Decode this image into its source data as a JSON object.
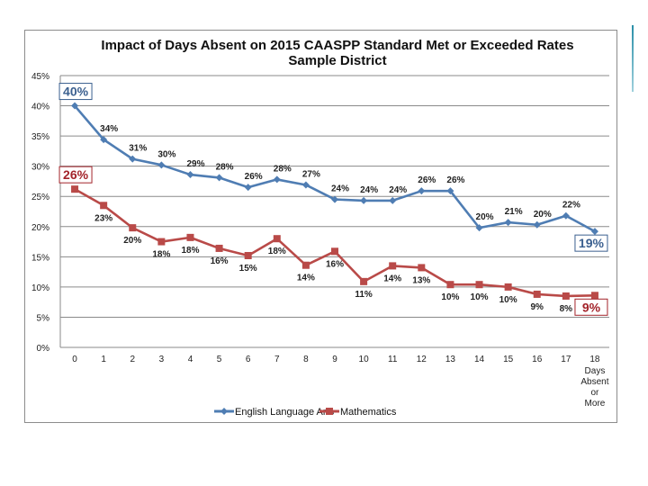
{
  "chart_data": {
    "type": "line",
    "title": "Impact of Days Absent on 2015 CAASPP Standard Met or Exceeded Rates",
    "subtitle": "Sample District",
    "xlabel": "Days Absent or More",
    "ylabel": "",
    "categories": [
      "0",
      "1",
      "2",
      "3",
      "4",
      "5",
      "6",
      "7",
      "8",
      "9",
      "10",
      "11",
      "12",
      "13",
      "14",
      "15",
      "16",
      "17",
      "18"
    ],
    "last_category_note": [
      "Days",
      "Absent",
      "or",
      "More"
    ],
    "y_ticks": [
      "0%",
      "5%",
      "10%",
      "15%",
      "20%",
      "25%",
      "30%",
      "35%",
      "40%",
      "45%"
    ],
    "ylim": [
      0,
      45
    ],
    "grid": true,
    "legend_position": "bottom",
    "series": [
      {
        "name": "English Language Arts",
        "color": "#4f7db3",
        "marker": "diamond",
        "values": [
          40,
          34.4,
          31.2,
          30.2,
          28.6,
          28.1,
          26.5,
          27.8,
          26.9,
          24.5,
          24.3,
          24.3,
          25.9,
          25.9,
          19.8,
          20.7,
          20.3,
          21.8,
          19.2
        ],
        "labels": [
          "40%",
          "34%",
          "31%",
          "30%",
          "29%",
          "28%",
          "26%",
          "28%",
          "27%",
          "24%",
          "24%",
          "24%",
          "26%",
          "26%",
          "20%",
          "21%",
          "20%",
          "22%",
          "19%"
        ]
      },
      {
        "name": "Mathematics",
        "color": "#b94a48",
        "marker": "square",
        "values": [
          26.2,
          23.5,
          19.8,
          17.5,
          18.2,
          16.4,
          15.2,
          18.0,
          13.6,
          15.9,
          10.9,
          13.5,
          13.2,
          10.4,
          10.4,
          10.0,
          8.8,
          8.5,
          8.6
        ],
        "labels": [
          "26%",
          "23%",
          "20%",
          "18%",
          "18%",
          "16%",
          "15%",
          "18%",
          "14%",
          "16%",
          "11%",
          "14%",
          "13%",
          "10%",
          "10%",
          "10%",
          "9%",
          "8%",
          "9%"
        ]
      }
    ],
    "callouts": [
      {
        "series": 0,
        "index": 0,
        "text": "40%"
      },
      {
        "series": 0,
        "index": 18,
        "text": "19%"
      },
      {
        "series": 1,
        "index": 0,
        "text": "26%"
      },
      {
        "series": 1,
        "index": 18,
        "text": "9%"
      }
    ]
  }
}
